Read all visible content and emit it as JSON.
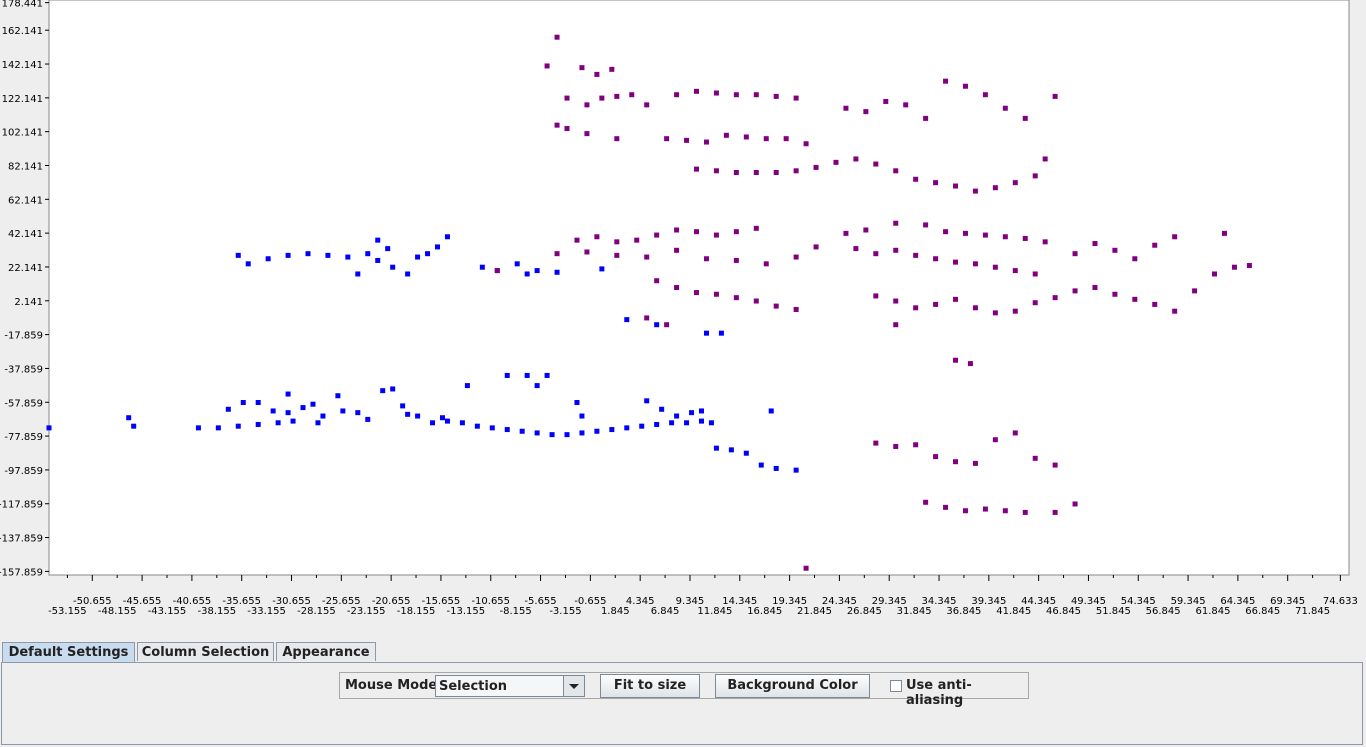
{
  "chart_data": {
    "type": "scatter",
    "xlim": [
      -55,
      75.5
    ],
    "ylim": [
      -160,
      180
    ],
    "x_ticks_top": [
      "-50.655",
      "-45.655",
      "-40.655",
      "-35.655",
      "-30.655",
      "-25.655",
      "-20.655",
      "-15.655",
      "-10.655",
      "-5.655",
      "-0.655",
      "4.345",
      "9.345",
      "14.345",
      "19.345",
      "24.345",
      "29.345",
      "34.345",
      "39.345",
      "44.345",
      "49.345",
      "54.345",
      "59.345",
      "64.345",
      "69.345",
      "74.633"
    ],
    "x_ticks_bottom": [
      "-53.155",
      "-48.155",
      "-43.155",
      "-38.155",
      "-33.155",
      "-28.155",
      "-23.155",
      "-18.155",
      "-13.155",
      "-8.155",
      "-3.155",
      "1.845",
      "6.845",
      "11.845",
      "16.845",
      "21.845",
      "26.845",
      "31.845",
      "36.845",
      "41.845",
      "46.845",
      "51.845",
      "56.845",
      "61.845",
      "66.845",
      "71.845"
    ],
    "y_ticks": [
      "178.441",
      "162.141",
      "142.141",
      "122.141",
      "102.141",
      "82.141",
      "62.141",
      "42.141",
      "22.141",
      "2.141",
      "-17.859",
      "-37.859",
      "-57.859",
      "-77.859",
      "-97.859",
      "-117.859",
      "-137.859",
      "-157.859"
    ],
    "series": [
      {
        "color": "#0000ff",
        "points": [
          [
            -55,
            -73
          ],
          [
            -47,
            -67
          ],
          [
            -46.5,
            -72
          ],
          [
            -40,
            -73
          ],
          [
            -38,
            -73
          ],
          [
            -36,
            -72
          ],
          [
            -34,
            -71
          ],
          [
            -32,
            -70
          ],
          [
            -30.5,
            -69
          ],
          [
            -28,
            -70
          ],
          [
            -37,
            -62
          ],
          [
            -35.5,
            -58
          ],
          [
            -34,
            -58
          ],
          [
            -32.5,
            -63
          ],
          [
            -31,
            -64
          ],
          [
            -29.5,
            -61
          ],
          [
            -27.5,
            -66
          ],
          [
            -25.5,
            -63
          ],
          [
            -24,
            -64
          ],
          [
            -23,
            -68
          ],
          [
            -21.5,
            -51
          ],
          [
            -20.5,
            -50
          ],
          [
            -19,
            -65
          ],
          [
            -18,
            -66
          ],
          [
            -16.5,
            -70
          ],
          [
            -15,
            -69
          ],
          [
            -13.5,
            -70
          ],
          [
            -12,
            -72
          ],
          [
            -10.5,
            -73
          ],
          [
            -9,
            -74
          ],
          [
            -7.5,
            -75
          ],
          [
            -6,
            -76
          ],
          [
            -4.5,
            -77
          ],
          [
            -3,
            -77
          ],
          [
            -1.5,
            -76
          ],
          [
            0,
            -75
          ],
          [
            1.5,
            -74
          ],
          [
            3,
            -73
          ],
          [
            4.5,
            -72
          ],
          [
            6,
            -71
          ],
          [
            7.5,
            -70
          ],
          [
            9,
            -70
          ],
          [
            10.5,
            -69
          ],
          [
            11.5,
            -70
          ],
          [
            5,
            -57
          ],
          [
            6.5,
            -62
          ],
          [
            8,
            -66
          ],
          [
            9.5,
            -64
          ],
          [
            10.5,
            -63
          ],
          [
            12,
            -85
          ],
          [
            13.5,
            -86
          ],
          [
            15,
            -88
          ],
          [
            16.5,
            -95
          ],
          [
            18,
            -97
          ],
          [
            20,
            -98
          ],
          [
            17.5,
            -63
          ],
          [
            -9,
            -42
          ],
          [
            -7,
            -42
          ],
          [
            -5,
            -42
          ],
          [
            -6,
            -48
          ],
          [
            -2,
            -58
          ],
          [
            -1.5,
            -66
          ],
          [
            -13,
            -48
          ],
          [
            -15.5,
            -67
          ],
          [
            -19.5,
            -60
          ],
          [
            -26,
            -54
          ],
          [
            -28.5,
            -59
          ],
          [
            -31,
            -53
          ],
          [
            -36,
            29
          ],
          [
            -35,
            24
          ],
          [
            -33,
            27
          ],
          [
            -31,
            29
          ],
          [
            -29,
            30
          ],
          [
            -27,
            29
          ],
          [
            -25,
            28
          ],
          [
            -23,
            30
          ],
          [
            -22,
            26
          ],
          [
            -21,
            33
          ],
          [
            -18,
            28
          ],
          [
            -17,
            30
          ],
          [
            -16,
            34
          ],
          [
            -19,
            18
          ],
          [
            -20.5,
            22
          ],
          [
            -22,
            38
          ],
          [
            -24,
            18
          ],
          [
            -15,
            40
          ],
          [
            -11.5,
            22
          ],
          [
            -10,
            20
          ],
          [
            -8,
            24
          ],
          [
            -7,
            18
          ],
          [
            -6,
            20
          ],
          [
            -4,
            19
          ],
          [
            0.5,
            21
          ],
          [
            3,
            -9
          ],
          [
            6,
            -12
          ],
          [
            11,
            -17
          ],
          [
            12.5,
            -17
          ]
        ]
      },
      {
        "color": "#800080",
        "points": [
          [
            -4,
            158
          ],
          [
            -5,
            141
          ],
          [
            -1.5,
            140
          ],
          [
            0,
            136
          ],
          [
            1.5,
            139
          ],
          [
            -3,
            122
          ],
          [
            -1,
            118
          ],
          [
            0.5,
            122
          ],
          [
            2,
            123
          ],
          [
            3.5,
            124
          ],
          [
            -4,
            106
          ],
          [
            -3,
            104
          ],
          [
            -1,
            101
          ],
          [
            2,
            98
          ],
          [
            5,
            118
          ],
          [
            8,
            124
          ],
          [
            10,
            126
          ],
          [
            12,
            125
          ],
          [
            14,
            124
          ],
          [
            16,
            124
          ],
          [
            18,
            123
          ],
          [
            20,
            122
          ],
          [
            7,
            98
          ],
          [
            9,
            97
          ],
          [
            11,
            96
          ],
          [
            13,
            100
          ],
          [
            15,
            99
          ],
          [
            17,
            98
          ],
          [
            19,
            98
          ],
          [
            21,
            95
          ],
          [
            10,
            80
          ],
          [
            12,
            79
          ],
          [
            14,
            78
          ],
          [
            16,
            78
          ],
          [
            18,
            78
          ],
          [
            20,
            79
          ],
          [
            22,
            81
          ],
          [
            24,
            84
          ],
          [
            26,
            86
          ],
          [
            28,
            83
          ],
          [
            30,
            79
          ],
          [
            32,
            74
          ],
          [
            34,
            72
          ],
          [
            36,
            70
          ],
          [
            38,
            67
          ],
          [
            40,
            69
          ],
          [
            42,
            72
          ],
          [
            44,
            76
          ],
          [
            45,
            86
          ],
          [
            25,
            116
          ],
          [
            27,
            114
          ],
          [
            29,
            120
          ],
          [
            31,
            118
          ],
          [
            33,
            110
          ],
          [
            35,
            132
          ],
          [
            37,
            129
          ],
          [
            39,
            124
          ],
          [
            41,
            116
          ],
          [
            43,
            110
          ],
          [
            46,
            123
          ],
          [
            -2,
            38
          ],
          [
            0,
            40
          ],
          [
            2,
            37
          ],
          [
            4,
            38
          ],
          [
            6,
            41
          ],
          [
            8,
            44
          ],
          [
            10,
            43
          ],
          [
            12,
            41
          ],
          [
            14,
            43
          ],
          [
            16,
            45
          ],
          [
            -4,
            30
          ],
          [
            -1,
            31
          ],
          [
            2,
            29
          ],
          [
            5,
            28
          ],
          [
            8,
            32
          ],
          [
            11,
            27
          ],
          [
            14,
            26
          ],
          [
            17,
            24
          ],
          [
            20,
            28
          ],
          [
            22,
            34
          ],
          [
            25,
            42
          ],
          [
            27,
            44
          ],
          [
            30,
            48
          ],
          [
            33,
            47
          ],
          [
            35,
            43
          ],
          [
            37,
            42
          ],
          [
            39,
            41
          ],
          [
            41,
            40
          ],
          [
            43,
            39
          ],
          [
            45,
            37
          ],
          [
            26,
            33
          ],
          [
            28,
            30
          ],
          [
            30,
            32
          ],
          [
            32,
            29
          ],
          [
            34,
            27
          ],
          [
            36,
            25
          ],
          [
            38,
            24
          ],
          [
            40,
            22
          ],
          [
            42,
            20
          ],
          [
            44,
            18
          ],
          [
            6,
            14
          ],
          [
            8,
            10
          ],
          [
            10,
            7
          ],
          [
            12,
            6
          ],
          [
            14,
            4
          ],
          [
            16,
            2
          ],
          [
            18,
            -1
          ],
          [
            20,
            -3
          ],
          [
            5,
            -8
          ],
          [
            7,
            -12
          ],
          [
            28,
            5
          ],
          [
            30,
            2
          ],
          [
            32,
            -2
          ],
          [
            34,
            0
          ],
          [
            36,
            3
          ],
          [
            38,
            -2
          ],
          [
            40,
            -5
          ],
          [
            42,
            -4
          ],
          [
            44,
            1
          ],
          [
            46,
            4
          ],
          [
            48,
            8
          ],
          [
            50,
            10
          ],
          [
            52,
            6
          ],
          [
            54,
            3
          ],
          [
            56,
            0
          ],
          [
            58,
            -4
          ],
          [
            60,
            8
          ],
          [
            62,
            18
          ],
          [
            64,
            22
          ],
          [
            65.5,
            23
          ],
          [
            48,
            30
          ],
          [
            50,
            36
          ],
          [
            52,
            32
          ],
          [
            54,
            27
          ],
          [
            56,
            35
          ],
          [
            58,
            40
          ],
          [
            63,
            42
          ],
          [
            30,
            -12
          ],
          [
            36,
            -33
          ],
          [
            37.5,
            -35
          ],
          [
            28,
            -82
          ],
          [
            30,
            -84
          ],
          [
            32,
            -83
          ],
          [
            34,
            -90
          ],
          [
            36,
            -93
          ],
          [
            38,
            -94
          ],
          [
            40,
            -80
          ],
          [
            42,
            -76
          ],
          [
            44,
            -91
          ],
          [
            46,
            -95
          ],
          [
            33,
            -117
          ],
          [
            35,
            -120
          ],
          [
            37,
            -122
          ],
          [
            39,
            -121
          ],
          [
            41,
            -122
          ],
          [
            43,
            -123
          ],
          [
            46,
            -123
          ],
          [
            48,
            -118
          ],
          [
            21,
            -156
          ],
          [
            -10,
            20
          ]
        ]
      }
    ]
  },
  "tabs": [
    {
      "label": "Default Settings"
    },
    {
      "label": "Column Selection"
    },
    {
      "label": "Appearance"
    }
  ],
  "toolbar": {
    "mouse_mode_label": "Mouse Mode",
    "mouse_mode_value": "Selection",
    "fit_button": "Fit to size",
    "background_button": "Background Color",
    "antialias_label": "Use anti-aliasing",
    "antialias_checked": false
  }
}
